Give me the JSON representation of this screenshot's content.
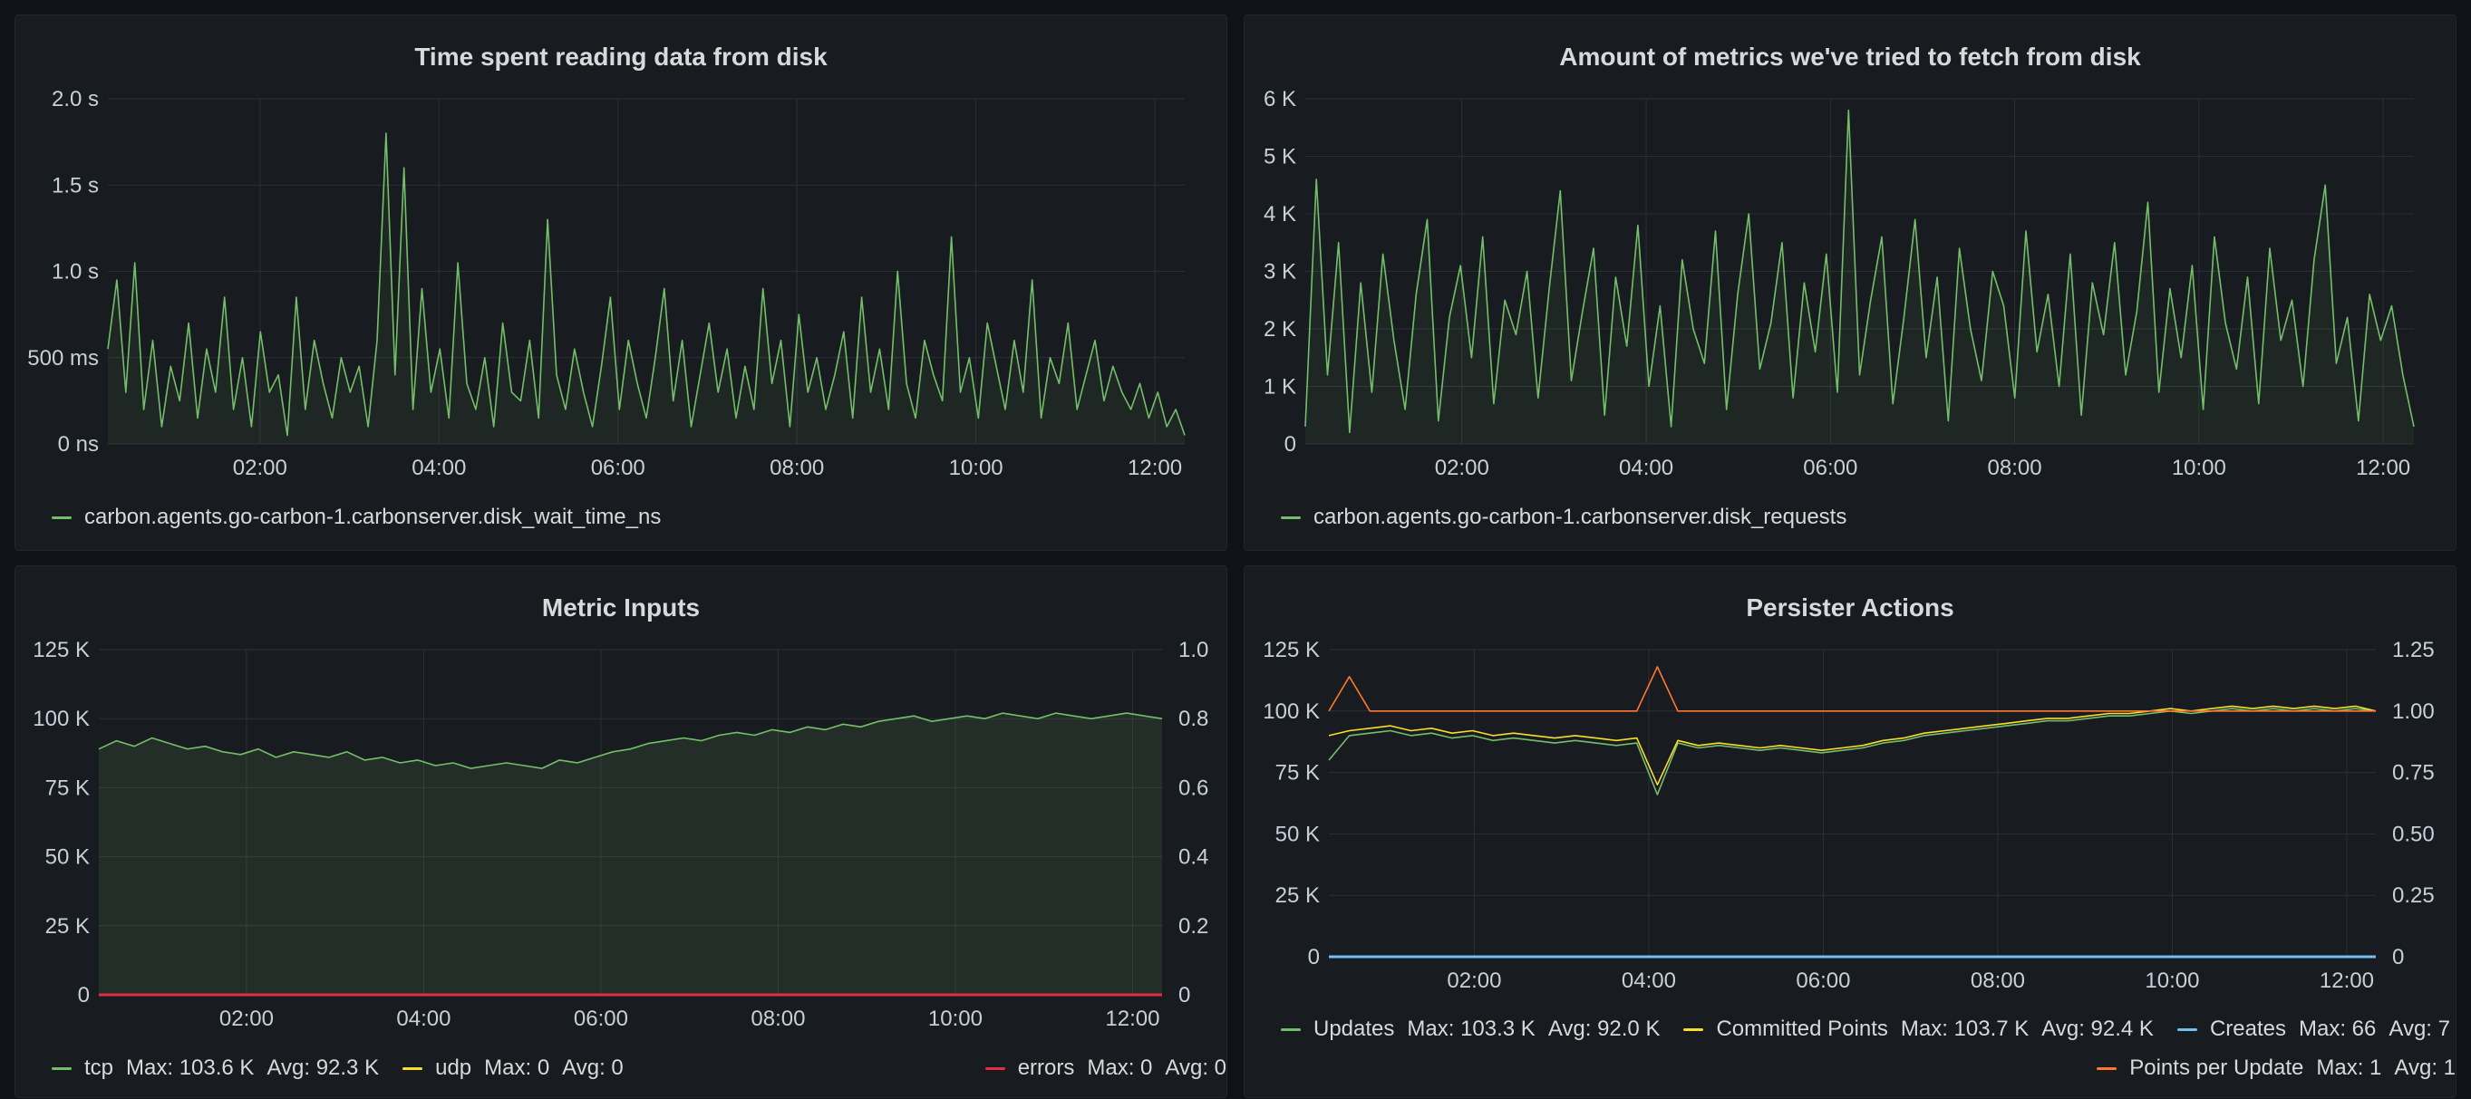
{
  "colors": {
    "green": "#73bf69",
    "yellow": "#fade2a",
    "red": "#e02f44",
    "orange": "#ff7830",
    "light_orange": "#ffb357",
    "blue": "#73c0f2",
    "grid": "#2c3035",
    "panel_bg": "#181b1f"
  },
  "panels": {
    "disk_time": {
      "title": "Time spent reading data from disk",
      "legend": [
        {
          "name": "carbon.agents.go-carbon-1.carbonserver.disk_wait_time_ns",
          "color": "#73bf69"
        }
      ]
    },
    "disk_requests": {
      "title": "Amount of metrics we've tried to fetch from disk",
      "legend": [
        {
          "name": "carbon.agents.go-carbon-1.carbonserver.disk_requests",
          "color": "#73bf69"
        }
      ]
    },
    "metric_inputs": {
      "title": "Metric Inputs",
      "legend": [
        {
          "name": "tcp",
          "max": "Max: 103.6 K",
          "avg": "Avg: 92.3 K",
          "color": "#73bf69"
        },
        {
          "name": "udp",
          "max": "Max: 0",
          "avg": "Avg: 0",
          "color": "#fade2a"
        },
        {
          "name": "errors",
          "max": "Max: 0",
          "avg": "Avg: 0",
          "color": "#e02f44"
        }
      ]
    },
    "persister": {
      "title": "Persister Actions",
      "legend": [
        {
          "name": "Updates",
          "max": "Max: 103.3 K",
          "avg": "Avg: 92.0 K",
          "color": "#73bf69"
        },
        {
          "name": "Committed Points",
          "max": "Max: 103.7 K",
          "avg": "Avg: 92.4 K",
          "color": "#fade2a"
        },
        {
          "name": "Creates",
          "max": "Max: 66",
          "avg": "Avg: 7",
          "color": "#73c0f2"
        },
        {
          "name": "Points per Update",
          "max": "Max: 1",
          "avg": "Avg: 1",
          "color": "#ff7830"
        }
      ]
    }
  },
  "chart_data": [
    {
      "type": "line",
      "title": "Time spent reading data from disk",
      "x_ticks": [
        "02:00",
        "04:00",
        "06:00",
        "08:00",
        "10:00",
        "12:00"
      ],
      "x_range": [
        "00:18",
        "12:20"
      ],
      "y_ticks": [
        "0 ns",
        "500 ms",
        "1.0 s",
        "1.5 s",
        "2.0 s"
      ],
      "ylim": [
        0,
        2.0
      ],
      "y_unit": "s",
      "grid": true,
      "legend_position": "bottom-left",
      "series": [
        {
          "name": "carbon.agents.go-carbon-1.carbonserver.disk_wait_time_ns",
          "color": "#73bf69",
          "values": [
            0.55,
            0.95,
            0.3,
            1.05,
            0.2,
            0.6,
            0.1,
            0.45,
            0.25,
            0.7,
            0.15,
            0.55,
            0.3,
            0.85,
            0.2,
            0.5,
            0.1,
            0.65,
            0.3,
            0.4,
            0.05,
            0.85,
            0.2,
            0.6,
            0.35,
            0.15,
            0.5,
            0.3,
            0.45,
            0.1,
            0.6,
            1.8,
            0.4,
            1.6,
            0.2,
            0.9,
            0.3,
            0.55,
            0.15,
            1.05,
            0.35,
            0.2,
            0.5,
            0.1,
            0.7,
            0.3,
            0.25,
            0.6,
            0.15,
            1.3,
            0.4,
            0.2,
            0.55,
            0.3,
            0.1,
            0.45,
            0.85,
            0.2,
            0.6,
            0.35,
            0.15,
            0.5,
            0.9,
            0.25,
            0.6,
            0.1,
            0.4,
            0.7,
            0.3,
            0.55,
            0.15,
            0.45,
            0.2,
            0.9,
            0.35,
            0.6,
            0.1,
            0.75,
            0.3,
            0.5,
            0.2,
            0.4,
            0.65,
            0.15,
            0.85,
            0.3,
            0.55,
            0.2,
            1.0,
            0.35,
            0.15,
            0.6,
            0.4,
            0.25,
            1.2,
            0.3,
            0.5,
            0.15,
            0.7,
            0.45,
            0.2,
            0.6,
            0.3,
            0.95,
            0.15,
            0.5,
            0.35,
            0.7,
            0.2,
            0.4,
            0.6,
            0.25,
            0.45,
            0.3,
            0.2,
            0.35,
            0.15,
            0.3,
            0.1,
            0.2,
            0.05
          ]
        }
      ]
    },
    {
      "type": "line",
      "title": "Amount of metrics we've tried to fetch from disk",
      "x_ticks": [
        "02:00",
        "04:00",
        "06:00",
        "08:00",
        "10:00",
        "12:00"
      ],
      "x_range": [
        "00:18",
        "12:20"
      ],
      "y_ticks": [
        "0",
        "1 K",
        "2 K",
        "3 K",
        "4 K",
        "5 K",
        "6 K"
      ],
      "ylim": [
        0,
        6000
      ],
      "grid": true,
      "legend_position": "bottom-left",
      "series": [
        {
          "name": "carbon.agents.go-carbon-1.carbonserver.disk_requests",
          "color": "#73bf69",
          "values": [
            300,
            4600,
            1200,
            3500,
            200,
            2800,
            900,
            3300,
            1800,
            600,
            2600,
            3900,
            400,
            2200,
            3100,
            1500,
            3600,
            700,
            2500,
            1900,
            3000,
            800,
            2700,
            4400,
            1100,
            2300,
            3400,
            500,
            2900,
            1700,
            3800,
            1000,
            2400,
            300,
            3200,
            2000,
            1400,
            3700,
            600,
            2600,
            4000,
            1300,
            2100,
            3500,
            800,
            2800,
            1600,
            3300,
            900,
            5800,
            1200,
            2500,
            3600,
            700,
            2200,
            3900,
            1500,
            2900,
            400,
            3400,
            2000,
            1100,
            3000,
            2400,
            800,
            3700,
            1600,
            2600,
            1000,
            3300,
            500,
            2800,
            1900,
            3500,
            1200,
            2300,
            4200,
            900,
            2700,
            1500,
            3100,
            600,
            3600,
            2100,
            1300,
            2900,
            700,
            3400,
            1800,
            2500,
            1000,
            3200,
            4500,
            1400,
            2200,
            400,
            2600,
            1800,
            2400,
            1200,
            300
          ]
        }
      ]
    },
    {
      "type": "area",
      "title": "Metric Inputs",
      "x_ticks": [
        "02:00",
        "04:00",
        "06:00",
        "08:00",
        "10:00",
        "12:00"
      ],
      "x_range": [
        "00:20",
        "12:20"
      ],
      "y_ticks_left": [
        "0",
        "25 K",
        "50 K",
        "75 K",
        "100 K",
        "125 K"
      ],
      "ylim_left": [
        0,
        125000
      ],
      "y_ticks_right": [
        "0",
        "0.2",
        "0.4",
        "0.6",
        "0.8",
        "1.0"
      ],
      "ylim_right": [
        0,
        1.0
      ],
      "grid": true,
      "legend_position": "bottom",
      "series": [
        {
          "name": "tcp",
          "color": "#73bf69",
          "axis": "left",
          "values": [
            89000,
            92000,
            90000,
            93000,
            91000,
            89000,
            90000,
            88000,
            87000,
            89000,
            86000,
            88000,
            87000,
            86000,
            88000,
            85000,
            86000,
            84000,
            85000,
            83000,
            84000,
            82000,
            83000,
            84000,
            83000,
            82000,
            85000,
            84000,
            86000,
            88000,
            89000,
            91000,
            92000,
            93000,
            92000,
            94000,
            95000,
            94000,
            96000,
            95000,
            97000,
            96000,
            98000,
            97000,
            99000,
            100000,
            101000,
            99000,
            100000,
            101000,
            100000,
            102000,
            101000,
            100000,
            102000,
            101000,
            100000,
            101000,
            102000,
            101000,
            100000
          ]
        },
        {
          "name": "udp",
          "color": "#fade2a",
          "axis": "left",
          "values": [
            0,
            0
          ]
        },
        {
          "name": "errors",
          "color": "#e02f44",
          "axis": "left",
          "values": [
            0,
            0
          ]
        }
      ]
    },
    {
      "type": "line",
      "title": "Persister Actions",
      "x_ticks": [
        "02:00",
        "04:00",
        "06:00",
        "08:00",
        "10:00",
        "12:00"
      ],
      "x_range": [
        "00:20",
        "12:20"
      ],
      "y_ticks_left": [
        "0",
        "25 K",
        "50 K",
        "75 K",
        "100 K",
        "125 K"
      ],
      "ylim_left": [
        0,
        125000
      ],
      "y_ticks_right": [
        "0",
        "0.25",
        "0.50",
        "0.75",
        "1.00",
        "1.25"
      ],
      "ylim_right": [
        0,
        1.25
      ],
      "grid": true,
      "legend_position": "bottom",
      "series": [
        {
          "name": "Updates",
          "color": "#73bf69",
          "axis": "left",
          "values": [
            80000,
            90000,
            91000,
            92000,
            90000,
            91000,
            89000,
            90000,
            88000,
            89000,
            88000,
            87000,
            88000,
            87000,
            86000,
            87000,
            66000,
            87000,
            85000,
            86000,
            85000,
            84000,
            85000,
            84000,
            83000,
            84000,
            85000,
            87000,
            88000,
            90000,
            91000,
            92000,
            93000,
            94000,
            95000,
            96000,
            96000,
            97000,
            98000,
            98000,
            99000,
            100000,
            99000,
            100000,
            101000,
            100000,
            101000,
            100000,
            101000,
            100000,
            101000,
            100000
          ]
        },
        {
          "name": "Committed Points",
          "color": "#fade2a",
          "axis": "left",
          "values": [
            90000,
            92000,
            93000,
            94000,
            92000,
            93000,
            91000,
            92000,
            90000,
            91000,
            90000,
            89000,
            90000,
            89000,
            88000,
            89000,
            70000,
            88000,
            86000,
            87000,
            86000,
            85000,
            86000,
            85000,
            84000,
            85000,
            86000,
            88000,
            89000,
            91000,
            92000,
            93000,
            94000,
            95000,
            96000,
            97000,
            97000,
            98000,
            99000,
            99000,
            100000,
            101000,
            100000,
            101000,
            102000,
            101000,
            102000,
            101000,
            102000,
            101000,
            102000,
            100000
          ]
        },
        {
          "name": "Creates",
          "color": "#73c0f2",
          "axis": "left",
          "values": [
            0,
            0
          ]
        },
        {
          "name": "Points per Update",
          "color": "#ff7830",
          "axis": "right",
          "values": [
            1.0,
            1.14,
            1.0,
            1.0,
            1.0,
            1.0,
            1.0,
            1.0,
            1.0,
            1.0,
            1.0,
            1.0,
            1.0,
            1.0,
            1.0,
            1.0,
            1.18,
            1.0,
            1.0,
            1.0,
            1.0,
            1.0,
            1.0,
            1.0,
            1.0,
            1.0,
            1.0,
            1.0,
            1.0,
            1.0,
            1.0,
            1.0,
            1.0,
            1.0,
            1.0,
            1.0,
            1.0,
            1.0,
            1.0,
            1.0,
            1.0,
            1.0,
            1.0,
            1.0,
            1.0,
            1.0,
            1.0,
            1.0,
            1.0,
            1.0,
            1.0,
            1.0
          ]
        }
      ]
    }
  ]
}
